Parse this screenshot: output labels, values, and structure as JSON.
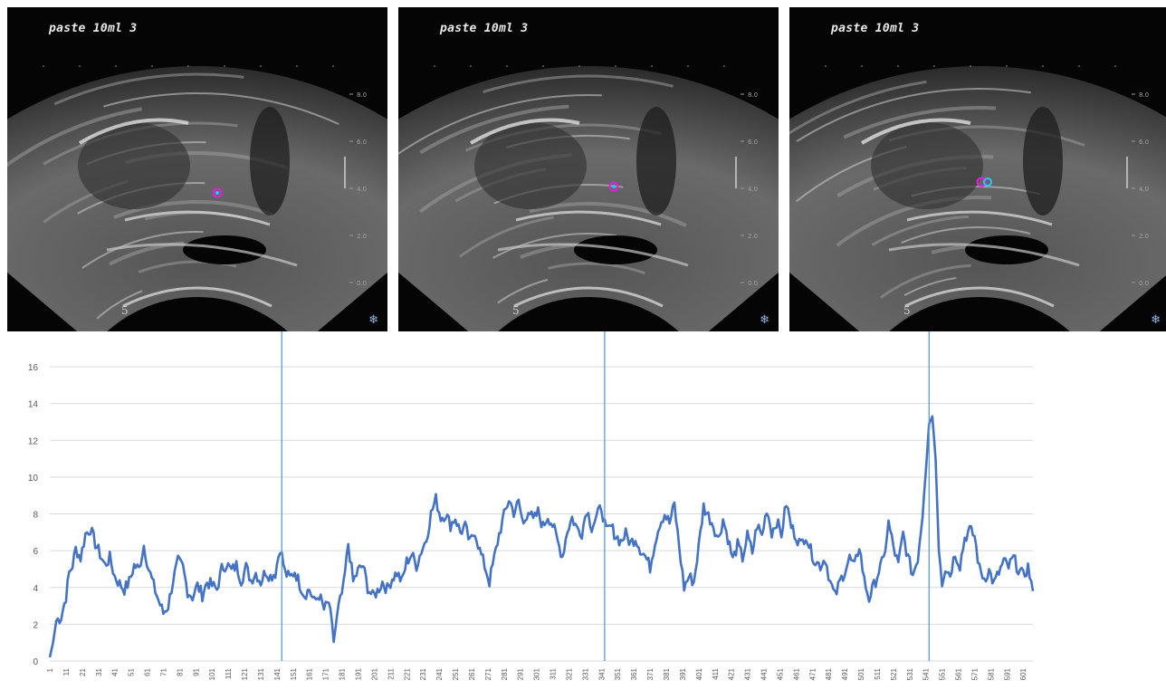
{
  "panels": [
    {
      "title": "paste 10ml 3",
      "marker": "5",
      "depth_ticks": [
        "8.0",
        "6.0",
        "4.0",
        "2.0",
        "0.0"
      ]
    },
    {
      "title": "paste 10ml 3",
      "marker": "5",
      "depth_ticks": [
        "8.0",
        "6.0",
        "4.0",
        "2.0",
        "0.0"
      ]
    },
    {
      "title": "paste 10ml 3",
      "marker": "5",
      "depth_ticks": [
        "8.0",
        "6.0",
        "4.0",
        "2.0",
        "0.0"
      ]
    }
  ],
  "icons": {
    "panel_corner": "snowflake-icon"
  },
  "colors": {
    "line": "#4472c4",
    "marker_lines": "#5b9bd5",
    "grid": "#d9d9d9",
    "circle_magenta": "#e020e0",
    "circle_cyan": "#22c8ff"
  },
  "chart_data": {
    "type": "line",
    "title": "",
    "xlabel": "",
    "ylabel": "",
    "ylim": [
      0,
      16
    ],
    "yticks": [
      0,
      2,
      4,
      6,
      8,
      10,
      12,
      14,
      16
    ],
    "xlim": [
      1,
      607
    ],
    "grid": "horizontal",
    "x_tick_labels": [
      "1",
      "11",
      "21",
      "31",
      "41",
      "51",
      "61",
      "71",
      "81",
      "91",
      "101",
      "111",
      "121",
      "131",
      "141",
      "151",
      "161",
      "171",
      "181",
      "191",
      "201",
      "211",
      "221",
      "231",
      "241",
      "251",
      "261",
      "271",
      "281",
      "291",
      "301",
      "311",
      "321",
      "331",
      "341",
      "351",
      "361",
      "371",
      "381",
      "391",
      "401",
      "411",
      "421",
      "431",
      "441",
      "451",
      "461",
      "471",
      "481",
      "491",
      "501",
      "511",
      "521",
      "531",
      "541",
      "551",
      "561",
      "571",
      "581",
      "591",
      "601"
    ],
    "vertical_markers_x": [
      144,
      343,
      543
    ],
    "series": [
      {
        "keypoints": [
          [
            1,
            0.2
          ],
          [
            3,
            1.0
          ],
          [
            5,
            2.2
          ],
          [
            8,
            2.4
          ],
          [
            11,
            3.5
          ],
          [
            13,
            4.8
          ],
          [
            15,
            5.2
          ],
          [
            17,
            6.1
          ],
          [
            20,
            5.6
          ],
          [
            23,
            6.9
          ],
          [
            26,
            7.2
          ],
          [
            29,
            6.4
          ],
          [
            32,
            5.8
          ],
          [
            35,
            5.2
          ],
          [
            38,
            5.6
          ],
          [
            41,
            4.6
          ],
          [
            44,
            4.2
          ],
          [
            47,
            3.9
          ],
          [
            50,
            4.3
          ],
          [
            53,
            5.2
          ],
          [
            56,
            5.0
          ],
          [
            59,
            6.3
          ],
          [
            62,
            5.0
          ],
          [
            65,
            4.1
          ],
          [
            68,
            3.3
          ],
          [
            71,
            2.6
          ],
          [
            74,
            3.0
          ],
          [
            77,
            4.4
          ],
          [
            80,
            5.4
          ],
          [
            83,
            5.1
          ],
          [
            86,
            3.8
          ],
          [
            89,
            3.5
          ],
          [
            92,
            4.1
          ],
          [
            95,
            3.6
          ],
          [
            98,
            4.3
          ],
          [
            101,
            4.1
          ],
          [
            104,
            3.9
          ],
          [
            107,
            5.0
          ],
          [
            110,
            5.3
          ],
          [
            113,
            4.9
          ],
          [
            116,
            5.2
          ],
          [
            119,
            4.4
          ],
          [
            122,
            5.1
          ],
          [
            125,
            4.4
          ],
          [
            128,
            4.8
          ],
          [
            131,
            4.3
          ],
          [
            134,
            4.9
          ],
          [
            137,
            4.6
          ],
          [
            140,
            4.8
          ],
          [
            143,
            6.2
          ],
          [
            146,
            4.8
          ],
          [
            149,
            4.5
          ],
          [
            152,
            4.9
          ],
          [
            155,
            4.2
          ],
          [
            158,
            3.6
          ],
          [
            161,
            3.9
          ],
          [
            164,
            3.2
          ],
          [
            167,
            3.6
          ],
          [
            170,
            2.8
          ],
          [
            173,
            3.2
          ],
          [
            176,
            1.1
          ],
          [
            179,
            2.9
          ],
          [
            182,
            4.0
          ],
          [
            185,
            6.4
          ],
          [
            188,
            4.3
          ],
          [
            191,
            4.9
          ],
          [
            194,
            5.2
          ],
          [
            197,
            4.0
          ],
          [
            200,
            3.5
          ],
          [
            203,
            3.8
          ],
          [
            206,
            4.3
          ],
          [
            209,
            3.9
          ],
          [
            212,
            4.5
          ],
          [
            215,
            4.8
          ],
          [
            218,
            4.3
          ],
          [
            221,
            5.4
          ],
          [
            224,
            5.8
          ],
          [
            227,
            5.2
          ],
          [
            230,
            6.0
          ],
          [
            233,
            6.6
          ],
          [
            236,
            8.0
          ],
          [
            239,
            8.8
          ],
          [
            242,
            7.8
          ],
          [
            245,
            8.0
          ],
          [
            248,
            7.4
          ],
          [
            251,
            7.8
          ],
          [
            254,
            7.0
          ],
          [
            257,
            7.3
          ],
          [
            260,
            6.4
          ],
          [
            263,
            7.1
          ],
          [
            266,
            6.0
          ],
          [
            269,
            5.2
          ],
          [
            272,
            4.3
          ],
          [
            275,
            5.6
          ],
          [
            278,
            6.9
          ],
          [
            281,
            7.9
          ],
          [
            284,
            8.8
          ],
          [
            287,
            8.1
          ],
          [
            290,
            8.6
          ],
          [
            293,
            7.4
          ],
          [
            296,
            8.3
          ],
          [
            299,
            7.6
          ],
          [
            302,
            8.1
          ],
          [
            305,
            7.3
          ],
          [
            308,
            7.9
          ],
          [
            311,
            7.4
          ],
          [
            314,
            6.5
          ],
          [
            317,
            5.7
          ],
          [
            320,
            7.1
          ],
          [
            323,
            7.8
          ],
          [
            326,
            7.2
          ],
          [
            329,
            7.0
          ],
          [
            332,
            8.3
          ],
          [
            335,
            7.3
          ],
          [
            338,
            7.8
          ],
          [
            341,
            8.4
          ],
          [
            344,
            7.0
          ],
          [
            347,
            7.3
          ],
          [
            350,
            6.8
          ],
          [
            353,
            6.5
          ],
          [
            356,
            6.9
          ],
          [
            359,
            6.4
          ],
          [
            362,
            6.7
          ],
          [
            365,
            6.1
          ],
          [
            368,
            5.7
          ],
          [
            371,
            5.1
          ],
          [
            374,
            6.5
          ],
          [
            377,
            7.5
          ],
          [
            380,
            8.0
          ],
          [
            383,
            7.5
          ],
          [
            386,
            8.5
          ],
          [
            389,
            6.2
          ],
          [
            392,
            4.0
          ],
          [
            395,
            4.6
          ],
          [
            398,
            4.3
          ],
          [
            401,
            6.2
          ],
          [
            404,
            8.4
          ],
          [
            407,
            7.9
          ],
          [
            410,
            7.4
          ],
          [
            413,
            6.6
          ],
          [
            416,
            7.7
          ],
          [
            419,
            6.7
          ],
          [
            422,
            5.5
          ],
          [
            425,
            6.3
          ],
          [
            428,
            5.6
          ],
          [
            431,
            6.8
          ],
          [
            434,
            5.9
          ],
          [
            437,
            7.4
          ],
          [
            440,
            6.8
          ],
          [
            443,
            8.3
          ],
          [
            446,
            7.0
          ],
          [
            449,
            7.6
          ],
          [
            452,
            6.9
          ],
          [
            455,
            8.6
          ],
          [
            458,
            7.3
          ],
          [
            461,
            6.8
          ],
          [
            464,
            6.3
          ],
          [
            467,
            6.9
          ],
          [
            470,
            6.0
          ],
          [
            473,
            5.4
          ],
          [
            476,
            5.2
          ],
          [
            479,
            5.6
          ],
          [
            482,
            4.3
          ],
          [
            485,
            3.5
          ],
          [
            488,
            4.3
          ],
          [
            491,
            4.9
          ],
          [
            494,
            5.6
          ],
          [
            497,
            5.1
          ],
          [
            500,
            6.3
          ],
          [
            503,
            4.4
          ],
          [
            506,
            3.4
          ],
          [
            509,
            4.1
          ],
          [
            512,
            4.9
          ],
          [
            515,
            5.5
          ],
          [
            518,
            7.5
          ],
          [
            521,
            6.2
          ],
          [
            524,
            5.2
          ],
          [
            527,
            6.9
          ],
          [
            530,
            5.6
          ],
          [
            533,
            4.7
          ],
          [
            536,
            5.6
          ],
          [
            539,
            8.0
          ],
          [
            541,
            10.3
          ],
          [
            543,
            12.9
          ],
          [
            545,
            13.3
          ],
          [
            547,
            11.0
          ],
          [
            549,
            6.0
          ],
          [
            551,
            4.3
          ],
          [
            553,
            5.1
          ],
          [
            556,
            4.7
          ],
          [
            559,
            5.9
          ],
          [
            562,
            5.2
          ],
          [
            565,
            6.7
          ],
          [
            568,
            7.1
          ],
          [
            571,
            6.8
          ],
          [
            574,
            5.0
          ],
          [
            577,
            4.5
          ],
          [
            580,
            4.9
          ],
          [
            583,
            4.2
          ],
          [
            586,
            4.8
          ],
          [
            589,
            5.4
          ],
          [
            592,
            5.1
          ],
          [
            595,
            5.6
          ],
          [
            598,
            5.0
          ],
          [
            601,
            4.6
          ],
          [
            604,
            5.1
          ],
          [
            607,
            3.8
          ]
        ]
      }
    ]
  }
}
